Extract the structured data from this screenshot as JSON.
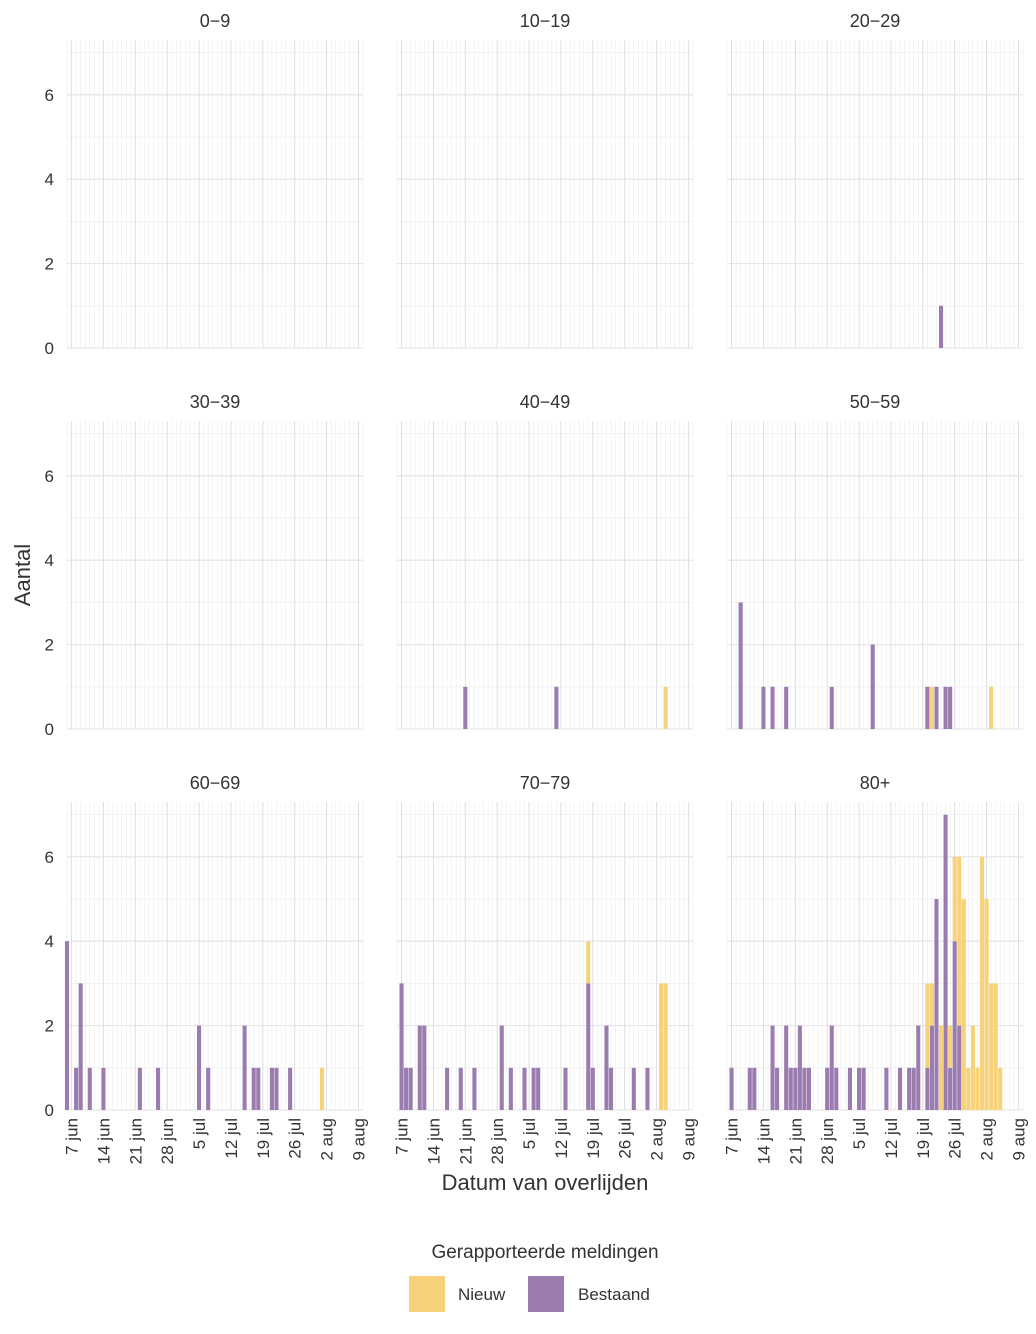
{
  "chart_data": {
    "type": "bar",
    "facet_layout": "3x3",
    "xlabel": "Datum van overlijden",
    "ylabel": "Aantal",
    "ylim": [
      0,
      7.3
    ],
    "yticks": [
      0,
      2,
      4,
      6
    ],
    "xlim": [
      "2020-06-06",
      "2020-08-10"
    ],
    "xticks": [
      {
        "date": "2020-06-07",
        "label": "7 jun"
      },
      {
        "date": "2020-06-14",
        "label": "14 jun"
      },
      {
        "date": "2020-06-21",
        "label": "21 jun"
      },
      {
        "date": "2020-06-28",
        "label": "28 jun"
      },
      {
        "date": "2020-07-05",
        "label": "5 jul"
      },
      {
        "date": "2020-07-12",
        "label": "12 jul"
      },
      {
        "date": "2020-07-19",
        "label": "19 jul"
      },
      {
        "date": "2020-07-26",
        "label": "26 jul"
      },
      {
        "date": "2020-08-02",
        "label": "2 aug"
      },
      {
        "date": "2020-08-09",
        "label": "9 aug"
      }
    ],
    "grid": true,
    "stacked": true,
    "legend": {
      "title": "Gerapporteerde meldingen",
      "position": "bottom",
      "entries": [
        {
          "key": "nieuw",
          "label": "Nieuw",
          "color": "#F8D27A"
        },
        {
          "key": "bestaand",
          "label": "Bestaand",
          "color": "#9A7CAE"
        }
      ]
    },
    "facets": [
      {
        "title": "0−9",
        "bars": []
      },
      {
        "title": "10−19",
        "bars": []
      },
      {
        "title": "20−29",
        "bars": [
          {
            "date": "2020-07-23",
            "bestaand": 1,
            "nieuw": 0
          }
        ]
      },
      {
        "title": "30−39",
        "bars": []
      },
      {
        "title": "40−49",
        "bars": [
          {
            "date": "2020-06-21",
            "bestaand": 1,
            "nieuw": 0
          },
          {
            "date": "2020-07-11",
            "bestaand": 1,
            "nieuw": 0
          },
          {
            "date": "2020-08-04",
            "bestaand": 0,
            "nieuw": 1
          }
        ]
      },
      {
        "title": "50−59",
        "bars": [
          {
            "date": "2020-06-09",
            "bestaand": 3,
            "nieuw": 0
          },
          {
            "date": "2020-06-14",
            "bestaand": 1,
            "nieuw": 0
          },
          {
            "date": "2020-06-16",
            "bestaand": 1,
            "nieuw": 0
          },
          {
            "date": "2020-06-19",
            "bestaand": 1,
            "nieuw": 0
          },
          {
            "date": "2020-06-29",
            "bestaand": 1,
            "nieuw": 0
          },
          {
            "date": "2020-07-08",
            "bestaand": 2,
            "nieuw": 0
          },
          {
            "date": "2020-07-20",
            "bestaand": 1,
            "nieuw": 0
          },
          {
            "date": "2020-07-21",
            "bestaand": 0,
            "nieuw": 1
          },
          {
            "date": "2020-07-22",
            "bestaand": 1,
            "nieuw": 0
          },
          {
            "date": "2020-07-24",
            "bestaand": 1,
            "nieuw": 0
          },
          {
            "date": "2020-07-25",
            "bestaand": 1,
            "nieuw": 0
          },
          {
            "date": "2020-08-03",
            "bestaand": 0,
            "nieuw": 1
          }
        ]
      },
      {
        "title": "60−69",
        "bars": [
          {
            "date": "2020-06-06",
            "bestaand": 4,
            "nieuw": 0
          },
          {
            "date": "2020-06-08",
            "bestaand": 1,
            "nieuw": 0
          },
          {
            "date": "2020-06-09",
            "bestaand": 3,
            "nieuw": 0
          },
          {
            "date": "2020-06-11",
            "bestaand": 1,
            "nieuw": 0
          },
          {
            "date": "2020-06-14",
            "bestaand": 1,
            "nieuw": 0
          },
          {
            "date": "2020-06-22",
            "bestaand": 1,
            "nieuw": 0
          },
          {
            "date": "2020-06-26",
            "bestaand": 1,
            "nieuw": 0
          },
          {
            "date": "2020-07-05",
            "bestaand": 2,
            "nieuw": 0
          },
          {
            "date": "2020-07-07",
            "bestaand": 1,
            "nieuw": 0
          },
          {
            "date": "2020-07-15",
            "bestaand": 2,
            "nieuw": 0
          },
          {
            "date": "2020-07-17",
            "bestaand": 1,
            "nieuw": 0
          },
          {
            "date": "2020-07-18",
            "bestaand": 1,
            "nieuw": 0
          },
          {
            "date": "2020-07-21",
            "bestaand": 1,
            "nieuw": 0
          },
          {
            "date": "2020-07-22",
            "bestaand": 1,
            "nieuw": 0
          },
          {
            "date": "2020-07-25",
            "bestaand": 1,
            "nieuw": 0
          },
          {
            "date": "2020-08-01",
            "bestaand": 0,
            "nieuw": 1
          }
        ]
      },
      {
        "title": "70−79",
        "bars": [
          {
            "date": "2020-06-07",
            "bestaand": 3,
            "nieuw": 0
          },
          {
            "date": "2020-06-08",
            "bestaand": 1,
            "nieuw": 0
          },
          {
            "date": "2020-06-09",
            "bestaand": 1,
            "nieuw": 0
          },
          {
            "date": "2020-06-11",
            "bestaand": 2,
            "nieuw": 0
          },
          {
            "date": "2020-06-12",
            "bestaand": 2,
            "nieuw": 0
          },
          {
            "date": "2020-06-17",
            "bestaand": 1,
            "nieuw": 0
          },
          {
            "date": "2020-06-20",
            "bestaand": 1,
            "nieuw": 0
          },
          {
            "date": "2020-06-23",
            "bestaand": 1,
            "nieuw": 0
          },
          {
            "date": "2020-06-29",
            "bestaand": 2,
            "nieuw": 0
          },
          {
            "date": "2020-07-01",
            "bestaand": 1,
            "nieuw": 0
          },
          {
            "date": "2020-07-04",
            "bestaand": 1,
            "nieuw": 0
          },
          {
            "date": "2020-07-06",
            "bestaand": 1,
            "nieuw": 0
          },
          {
            "date": "2020-07-07",
            "bestaand": 1,
            "nieuw": 0
          },
          {
            "date": "2020-07-13",
            "bestaand": 1,
            "nieuw": 0
          },
          {
            "date": "2020-07-18",
            "bestaand": 3,
            "nieuw": 1
          },
          {
            "date": "2020-07-19",
            "bestaand": 1,
            "nieuw": 0
          },
          {
            "date": "2020-07-22",
            "bestaand": 2,
            "nieuw": 0
          },
          {
            "date": "2020-07-23",
            "bestaand": 1,
            "nieuw": 0
          },
          {
            "date": "2020-07-28",
            "bestaand": 1,
            "nieuw": 0
          },
          {
            "date": "2020-07-31",
            "bestaand": 1,
            "nieuw": 0
          },
          {
            "date": "2020-08-03",
            "bestaand": 0,
            "nieuw": 3
          },
          {
            "date": "2020-08-04",
            "bestaand": 0,
            "nieuw": 3
          }
        ]
      },
      {
        "title": "80+",
        "bars": [
          {
            "date": "2020-06-07",
            "bestaand": 1,
            "nieuw": 0
          },
          {
            "date": "2020-06-11",
            "bestaand": 1,
            "nieuw": 0
          },
          {
            "date": "2020-06-12",
            "bestaand": 1,
            "nieuw": 0
          },
          {
            "date": "2020-06-16",
            "bestaand": 2,
            "nieuw": 0
          },
          {
            "date": "2020-06-17",
            "bestaand": 1,
            "nieuw": 0
          },
          {
            "date": "2020-06-19",
            "bestaand": 2,
            "nieuw": 0
          },
          {
            "date": "2020-06-20",
            "bestaand": 1,
            "nieuw": 0
          },
          {
            "date": "2020-06-21",
            "bestaand": 1,
            "nieuw": 0
          },
          {
            "date": "2020-06-22",
            "bestaand": 2,
            "nieuw": 0
          },
          {
            "date": "2020-06-23",
            "bestaand": 1,
            "nieuw": 0
          },
          {
            "date": "2020-06-24",
            "bestaand": 1,
            "nieuw": 0
          },
          {
            "date": "2020-06-28",
            "bestaand": 1,
            "nieuw": 0
          },
          {
            "date": "2020-06-29",
            "bestaand": 2,
            "nieuw": 0
          },
          {
            "date": "2020-06-30",
            "bestaand": 1,
            "nieuw": 0
          },
          {
            "date": "2020-07-03",
            "bestaand": 1,
            "nieuw": 0
          },
          {
            "date": "2020-07-05",
            "bestaand": 1,
            "nieuw": 0
          },
          {
            "date": "2020-07-06",
            "bestaand": 1,
            "nieuw": 0
          },
          {
            "date": "2020-07-11",
            "bestaand": 1,
            "nieuw": 0
          },
          {
            "date": "2020-07-14",
            "bestaand": 1,
            "nieuw": 0
          },
          {
            "date": "2020-07-16",
            "bestaand": 1,
            "nieuw": 0
          },
          {
            "date": "2020-07-17",
            "bestaand": 1,
            "nieuw": 0
          },
          {
            "date": "2020-07-18",
            "bestaand": 2,
            "nieuw": 0
          },
          {
            "date": "2020-07-20",
            "bestaand": 1,
            "nieuw": 2
          },
          {
            "date": "2020-07-21",
            "bestaand": 2,
            "nieuw": 1
          },
          {
            "date": "2020-07-22",
            "bestaand": 5,
            "nieuw": 0
          },
          {
            "date": "2020-07-23",
            "bestaand": 0,
            "nieuw": 2
          },
          {
            "date": "2020-07-24",
            "bestaand": 7,
            "nieuw": 0
          },
          {
            "date": "2020-07-25",
            "bestaand": 1,
            "nieuw": 1
          },
          {
            "date": "2020-07-26",
            "bestaand": 4,
            "nieuw": 2
          },
          {
            "date": "2020-07-27",
            "bestaand": 2,
            "nieuw": 4
          },
          {
            "date": "2020-07-28",
            "bestaand": 0,
            "nieuw": 5
          },
          {
            "date": "2020-07-29",
            "bestaand": 0,
            "nieuw": 1
          },
          {
            "date": "2020-07-30",
            "bestaand": 0,
            "nieuw": 2
          },
          {
            "date": "2020-07-31",
            "bestaand": 0,
            "nieuw": 1
          },
          {
            "date": "2020-08-01",
            "bestaand": 0,
            "nieuw": 6
          },
          {
            "date": "2020-08-02",
            "bestaand": 0,
            "nieuw": 5
          },
          {
            "date": "2020-08-03",
            "bestaand": 0,
            "nieuw": 3
          },
          {
            "date": "2020-08-04",
            "bestaand": 0,
            "nieuw": 3
          },
          {
            "date": "2020-08-05",
            "bestaand": 0,
            "nieuw": 1
          }
        ]
      }
    ]
  }
}
